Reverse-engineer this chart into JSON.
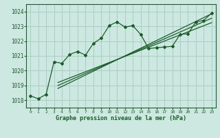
{
  "title": "Graphe pression niveau de la mer (hPa)",
  "background_color": "#cde8e0",
  "grid_color": "#a8cec5",
  "line_color": "#1a5c2a",
  "xlim": [
    -0.5,
    23.5
  ],
  "ylim": [
    1017.5,
    1024.5
  ],
  "xticks": [
    0,
    1,
    2,
    3,
    4,
    5,
    6,
    7,
    8,
    9,
    10,
    11,
    12,
    13,
    14,
    15,
    16,
    17,
    18,
    19,
    20,
    21,
    22,
    23
  ],
  "yticks": [
    1018,
    1019,
    1020,
    1021,
    1022,
    1023,
    1024
  ],
  "main_series": {
    "x": [
      0,
      1,
      2,
      3,
      4,
      5,
      6,
      7,
      8,
      9,
      10,
      11,
      12,
      13,
      14,
      15,
      16,
      17,
      18,
      19,
      20,
      21,
      22,
      23
    ],
    "y": [
      1018.3,
      1018.1,
      1018.4,
      1020.6,
      1020.5,
      1021.1,
      1021.3,
      1021.05,
      1021.85,
      1022.2,
      1023.05,
      1023.3,
      1022.95,
      1023.05,
      1022.45,
      1021.5,
      1021.55,
      1021.6,
      1021.65,
      1022.45,
      1022.5,
      1023.3,
      1023.4,
      1023.9
    ]
  },
  "trend_lines": [
    {
      "x": [
        3.5,
        23
      ],
      "y": [
        1018.8,
        1023.85
      ]
    },
    {
      "x": [
        3.5,
        23
      ],
      "y": [
        1019.0,
        1023.55
      ]
    },
    {
      "x": [
        3.5,
        23
      ],
      "y": [
        1019.2,
        1023.25
      ]
    }
  ]
}
